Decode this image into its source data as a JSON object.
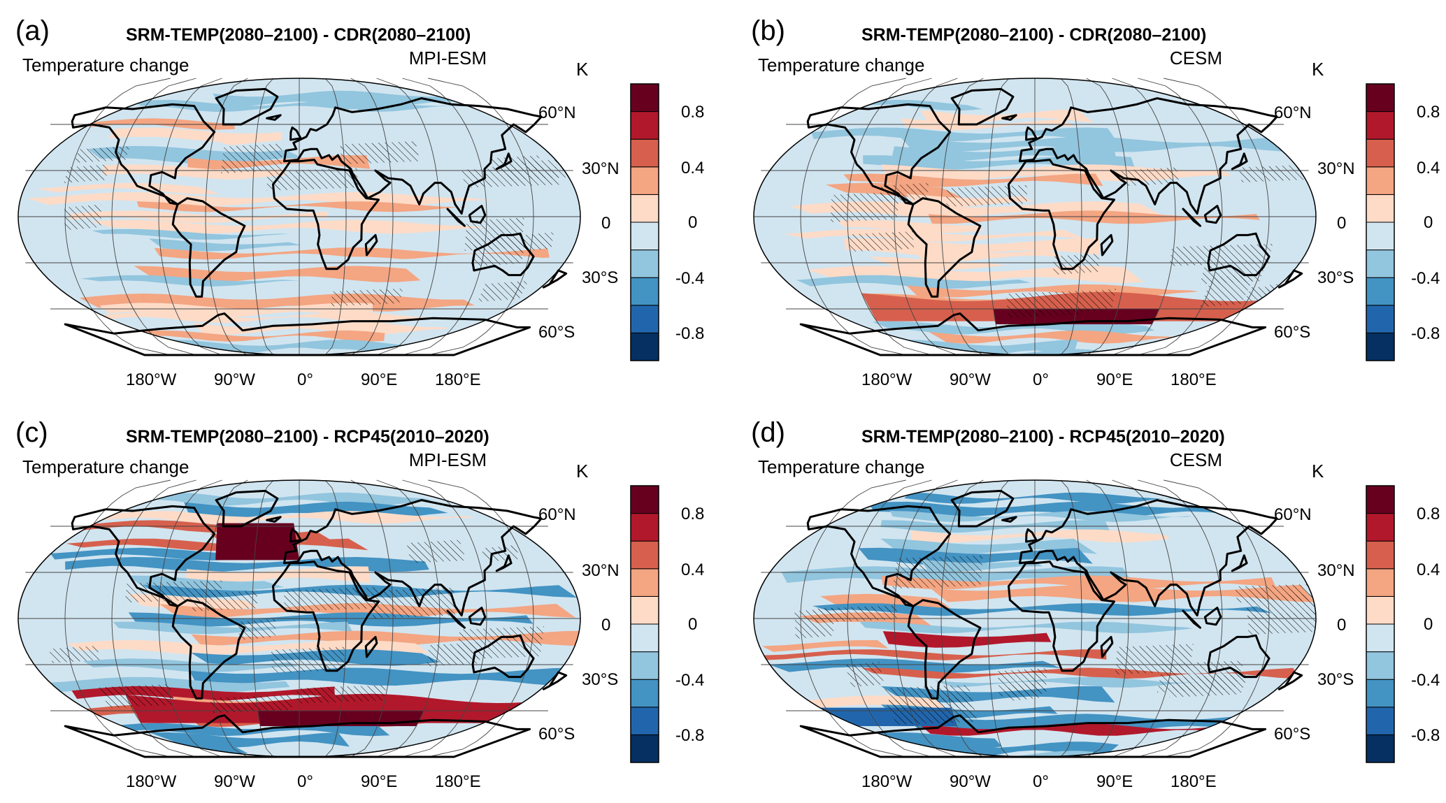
{
  "colors": {
    "scale": [
      "#053061",
      "#2166ac",
      "#4393c3",
      "#92c5de",
      "#d1e5f0",
      "#fddbc7",
      "#f4a582",
      "#d6604d",
      "#b2182b",
      "#67001f"
    ],
    "land_outline": "#000000",
    "grid": "#444444"
  },
  "colorbar": {
    "unit": "K",
    "ticks": [
      "0.8",
      "0.4",
      "0",
      "-0.4",
      "-0.8"
    ]
  },
  "lat_labels": [
    "60°N",
    "30°N",
    "0",
    "30°S",
    "60°S"
  ],
  "lon_labels": [
    "180°W",
    "90°W",
    "0°",
    "90°E",
    "180°E"
  ],
  "panels": [
    {
      "id": "a",
      "label": "(a)",
      "title": "SRM-TEMP(2080–2100) - CDR(2080–2100)",
      "quantity": "Temperature change",
      "model": "MPI-ESM"
    },
    {
      "id": "b",
      "label": "(b)",
      "title": "SRM-TEMP(2080–2100) - CDR(2080–2100)",
      "quantity": "Temperature change",
      "model": "CESM"
    },
    {
      "id": "c",
      "label": "(c)",
      "title": "SRM-TEMP(2080–2100) - RCP45(2010–2020)",
      "quantity": "Temperature change",
      "model": "MPI-ESM"
    },
    {
      "id": "d",
      "label": "(d)",
      "title": "SRM-TEMP(2080–2100) - RCP45(2010–2020)",
      "quantity": "Temperature change",
      "model": "CESM"
    }
  ]
}
